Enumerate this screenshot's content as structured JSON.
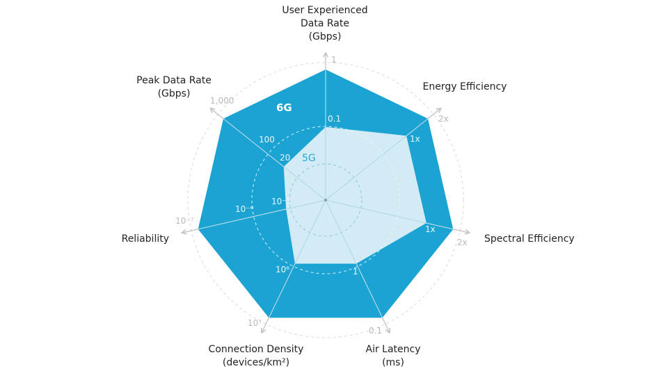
{
  "chart_data": {
    "type": "radar",
    "title": "",
    "axes": [
      {
        "label": "User Experienced Data Rate (Gbps)",
        "lines": [
          "User Experienced",
          "Data Rate",
          "(Gbps)"
        ],
        "g5_label": "0.1",
        "mid_label": "",
        "g6_label": "1"
      },
      {
        "label": "Energy Efficiency",
        "lines": [
          "Energy Efficiency"
        ],
        "g5_label": "1x",
        "mid_label": "",
        "g6_label": "2x"
      },
      {
        "label": "Spectral Efficiency",
        "lines": [
          "Spectral Efficiency"
        ],
        "g5_label": "1x",
        "mid_label": "",
        "g6_label": "2x"
      },
      {
        "label": "Air Latency (ms)",
        "lines": [
          "Air Latency",
          "(ms)"
        ],
        "g5_label": "1",
        "mid_label": "",
        "g6_label": "0.1"
      },
      {
        "label": "Connection Density (devices/km²)",
        "lines": [
          "Connection Density",
          "(devices/km²)"
        ],
        "g5_label": "10⁶",
        "mid_label": "",
        "g6_label": "10⁷"
      },
      {
        "label": "Reliability",
        "lines": [
          "Reliability"
        ],
        "g5_label": "10⁻⁵",
        "mid_label": "10⁻⁶",
        "g6_label": "10⁻⁷"
      },
      {
        "label": "Peak Data Rate (Gbps)",
        "lines": [
          "Peak Data Rate",
          "(Gbps)"
        ],
        "g5_label": "20",
        "mid_label": "100",
        "g6_label": "1,000"
      }
    ],
    "series": [
      {
        "name": "6G",
        "color": "#1aa3d3",
        "values_normalized": [
          1,
          1,
          1,
          1,
          1,
          1,
          1
        ]
      },
      {
        "name": "5G",
        "color": "#d3ebf4",
        "label_color": "#2aa6d2",
        "values_normalized": [
          0.56,
          0.79,
          0.79,
          0.54,
          0.54,
          0.31,
          0.41
        ]
      }
    ],
    "grid": "dashed circles"
  }
}
